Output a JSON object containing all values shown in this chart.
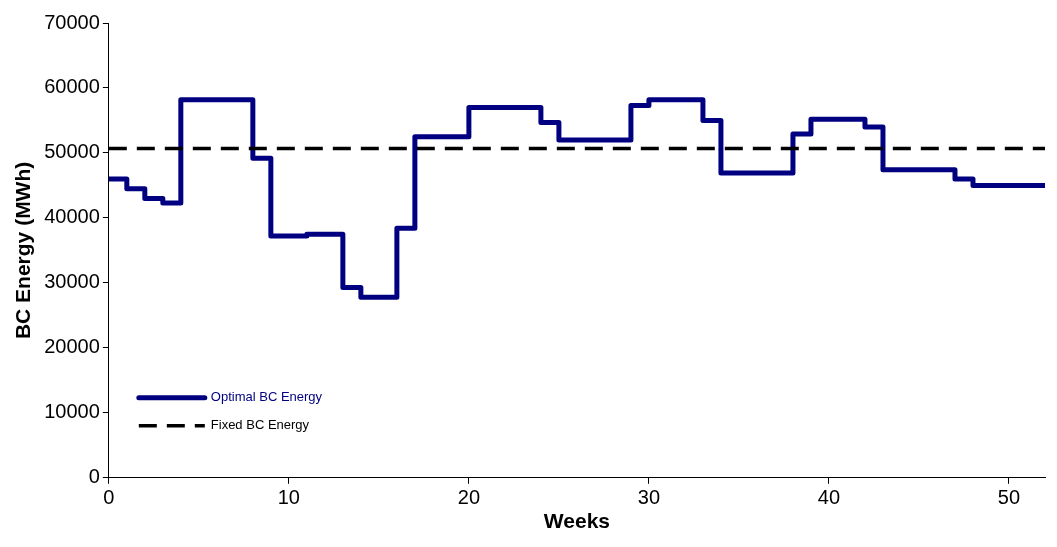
{
  "chart_data": {
    "type": "step",
    "xlabel": "Weeks",
    "ylabel": "BC Energy (MWh)",
    "x": [
      0,
      1,
      2,
      3,
      4,
      5,
      6,
      7,
      8,
      9,
      10,
      11,
      12,
      13,
      14,
      15,
      16,
      17,
      18,
      19,
      20,
      21,
      22,
      23,
      24,
      25,
      26,
      27,
      28,
      29,
      30,
      31,
      32,
      33,
      34,
      35,
      36,
      37,
      38,
      39,
      40,
      41,
      42,
      43,
      44,
      45,
      46,
      47,
      48,
      49,
      50,
      51,
      52
    ],
    "series": [
      {
        "name": "Optimal BC Energy",
        "color": "#000080",
        "values": [
          46000,
          44500,
          43000,
          42300,
          58200,
          58200,
          58200,
          58200,
          49200,
          37200,
          37200,
          37500,
          37500,
          29300,
          27800,
          27800,
          38400,
          52500,
          52500,
          52500,
          57000,
          57000,
          57000,
          57000,
          54700,
          52000,
          52000,
          52000,
          52000,
          57300,
          58200,
          58200,
          58200,
          55000,
          46900,
          46900,
          46900,
          46900,
          52900,
          55200,
          55200,
          55200,
          54000,
          47400,
          47400,
          47400,
          47400,
          46000,
          45000,
          45000,
          45000,
          45000,
          45000
        ]
      }
    ],
    "ref_lines": [
      {
        "axis": "y",
        "value": 50700,
        "label": "Fixed BC Energy",
        "color": "#000000",
        "line_style": "dashed"
      }
    ],
    "xlim": [
      0,
      52
    ],
    "xticks": [
      0,
      10,
      20,
      30,
      40,
      50
    ],
    "ylim": [
      0,
      70000
    ],
    "yticks": [
      0,
      10000,
      20000,
      30000,
      40000,
      50000,
      60000,
      70000
    ],
    "grid": false,
    "legend": "bottom left",
    "line_style": "solid",
    "marker": "none"
  }
}
